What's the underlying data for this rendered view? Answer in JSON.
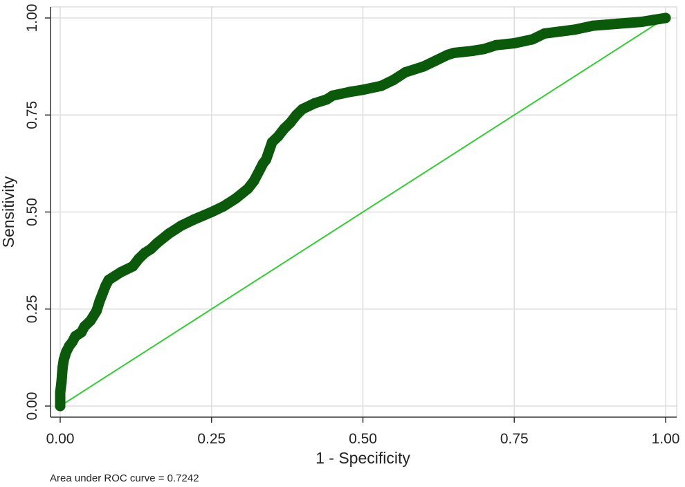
{
  "chart_data": {
    "type": "line",
    "xlabel": "1 - Specificity",
    "ylabel": "Sensitivity",
    "xlim": [
      0,
      1
    ],
    "ylim": [
      0,
      1
    ],
    "xticks": [
      "0.00",
      "0.25",
      "0.50",
      "0.75",
      "1.00"
    ],
    "yticks": [
      "0.00",
      "0.25",
      "0.50",
      "0.75",
      "1.00"
    ],
    "grid": true,
    "annotation": "Area under ROC curve = 0.7242",
    "colors": {
      "roc": "#0b5a0b",
      "reference": "#33cc33",
      "grid": "#dddddd",
      "axis": "#333333"
    },
    "series": [
      {
        "role": "roc",
        "x": [
          0.0,
          0.0,
          0.002,
          0.004,
          0.006,
          0.008,
          0.01,
          0.015,
          0.02,
          0.025,
          0.03,
          0.035,
          0.04,
          0.05,
          0.06,
          0.065,
          0.07,
          0.075,
          0.08,
          0.085,
          0.09,
          0.1,
          0.12,
          0.13,
          0.14,
          0.15,
          0.16,
          0.18,
          0.2,
          0.22,
          0.25,
          0.27,
          0.29,
          0.31,
          0.32,
          0.33,
          0.335,
          0.34,
          0.35,
          0.36,
          0.37,
          0.38,
          0.39,
          0.4,
          0.42,
          0.44,
          0.45,
          0.48,
          0.5,
          0.53,
          0.55,
          0.57,
          0.6,
          0.62,
          0.64,
          0.65,
          0.68,
          0.7,
          0.72,
          0.75,
          0.78,
          0.8,
          0.85,
          0.88,
          0.92,
          0.96,
          0.98,
          1.0
        ],
        "y": [
          0.0,
          0.035,
          0.06,
          0.1,
          0.12,
          0.13,
          0.14,
          0.155,
          0.165,
          0.18,
          0.185,
          0.19,
          0.205,
          0.22,
          0.245,
          0.27,
          0.29,
          0.31,
          0.325,
          0.33,
          0.335,
          0.345,
          0.36,
          0.38,
          0.395,
          0.405,
          0.42,
          0.445,
          0.465,
          0.48,
          0.5,
          0.515,
          0.535,
          0.56,
          0.58,
          0.61,
          0.625,
          0.635,
          0.68,
          0.695,
          0.715,
          0.73,
          0.75,
          0.765,
          0.78,
          0.79,
          0.8,
          0.81,
          0.815,
          0.825,
          0.84,
          0.86,
          0.875,
          0.89,
          0.905,
          0.91,
          0.915,
          0.92,
          0.93,
          0.935,
          0.945,
          0.96,
          0.97,
          0.98,
          0.985,
          0.99,
          0.995,
          1.0
        ]
      },
      {
        "role": "reference",
        "x": [
          0,
          1
        ],
        "y": [
          0,
          1
        ]
      }
    ]
  }
}
